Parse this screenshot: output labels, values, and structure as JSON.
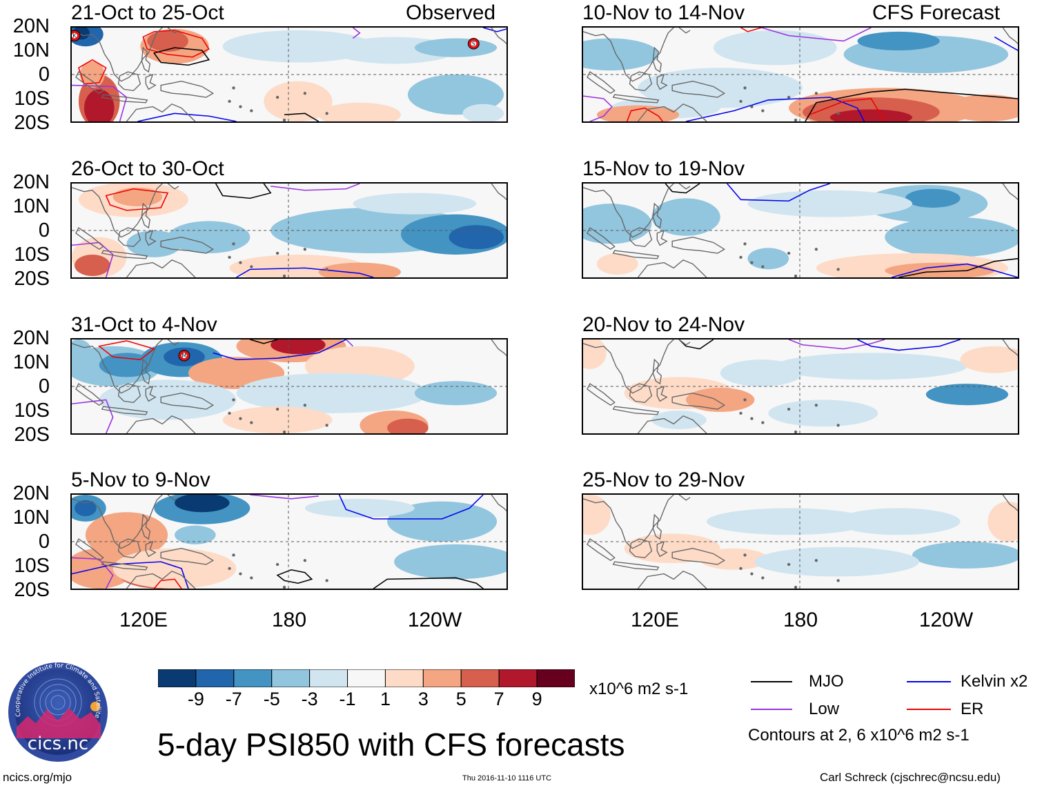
{
  "header": {
    "left_label": "Observed",
    "right_label": "CFS Forecast"
  },
  "panels": [
    {
      "title": "21-Oct to 25-Oct",
      "col": "left",
      "storms": [
        "K",
        "S"
      ]
    },
    {
      "title": "26-Oct to 30-Oct",
      "col": "left",
      "storms": []
    },
    {
      "title": "31-Oct to 4-Nov",
      "col": "left",
      "storms": [
        "M"
      ]
    },
    {
      "title": "5-Nov to 9-Nov",
      "col": "left",
      "storms": []
    },
    {
      "title": "10-Nov to 14-Nov",
      "col": "right",
      "storms": []
    },
    {
      "title": "15-Nov to 19-Nov",
      "col": "right",
      "storms": []
    },
    {
      "title": "20-Nov to 24-Nov",
      "col": "right",
      "storms": []
    },
    {
      "title": "25-Nov to 29-Nov",
      "col": "right",
      "storms": []
    }
  ],
  "lat_labels": [
    "20N",
    "10N",
    "0",
    "10S",
    "20S"
  ],
  "lon_labels": [
    "120E",
    "180",
    "120W"
  ],
  "colorbar": {
    "labels": [
      "-9",
      "-7",
      "-5",
      "-3",
      "-1",
      "1",
      "3",
      "5",
      "7",
      "9"
    ],
    "colors": [
      "#0a3a72",
      "#2166ac",
      "#4393c3",
      "#92c5de",
      "#d1e5f0",
      "#f7f7f7",
      "#fddbc7",
      "#f4a582",
      "#d6604d",
      "#b2182b",
      "#67001f"
    ],
    "units": "x10^6 m2 s-1"
  },
  "legend": {
    "items": [
      {
        "label": "MJO",
        "color": "#000000"
      },
      {
        "label": "Kelvin x2",
        "color": "#0000ee"
      },
      {
        "label": "Low",
        "color": "#9a30e0"
      },
      {
        "label": "ER",
        "color": "#ee0000"
      }
    ],
    "note": "Contours at 2, 6 x10^6 m2 s-1"
  },
  "title": "5-day PSI850 with CFS forecasts",
  "logo_text": "cics.nc",
  "logo_ring_text": "Cooperative Institute for Climate and Satellites",
  "footer": {
    "url": "ncics.org/mjo",
    "timestamp": "Thu 2016-11-10 1116 UTC",
    "author": "Carl Schreck (cjschrec@ncsu.edu)"
  }
}
